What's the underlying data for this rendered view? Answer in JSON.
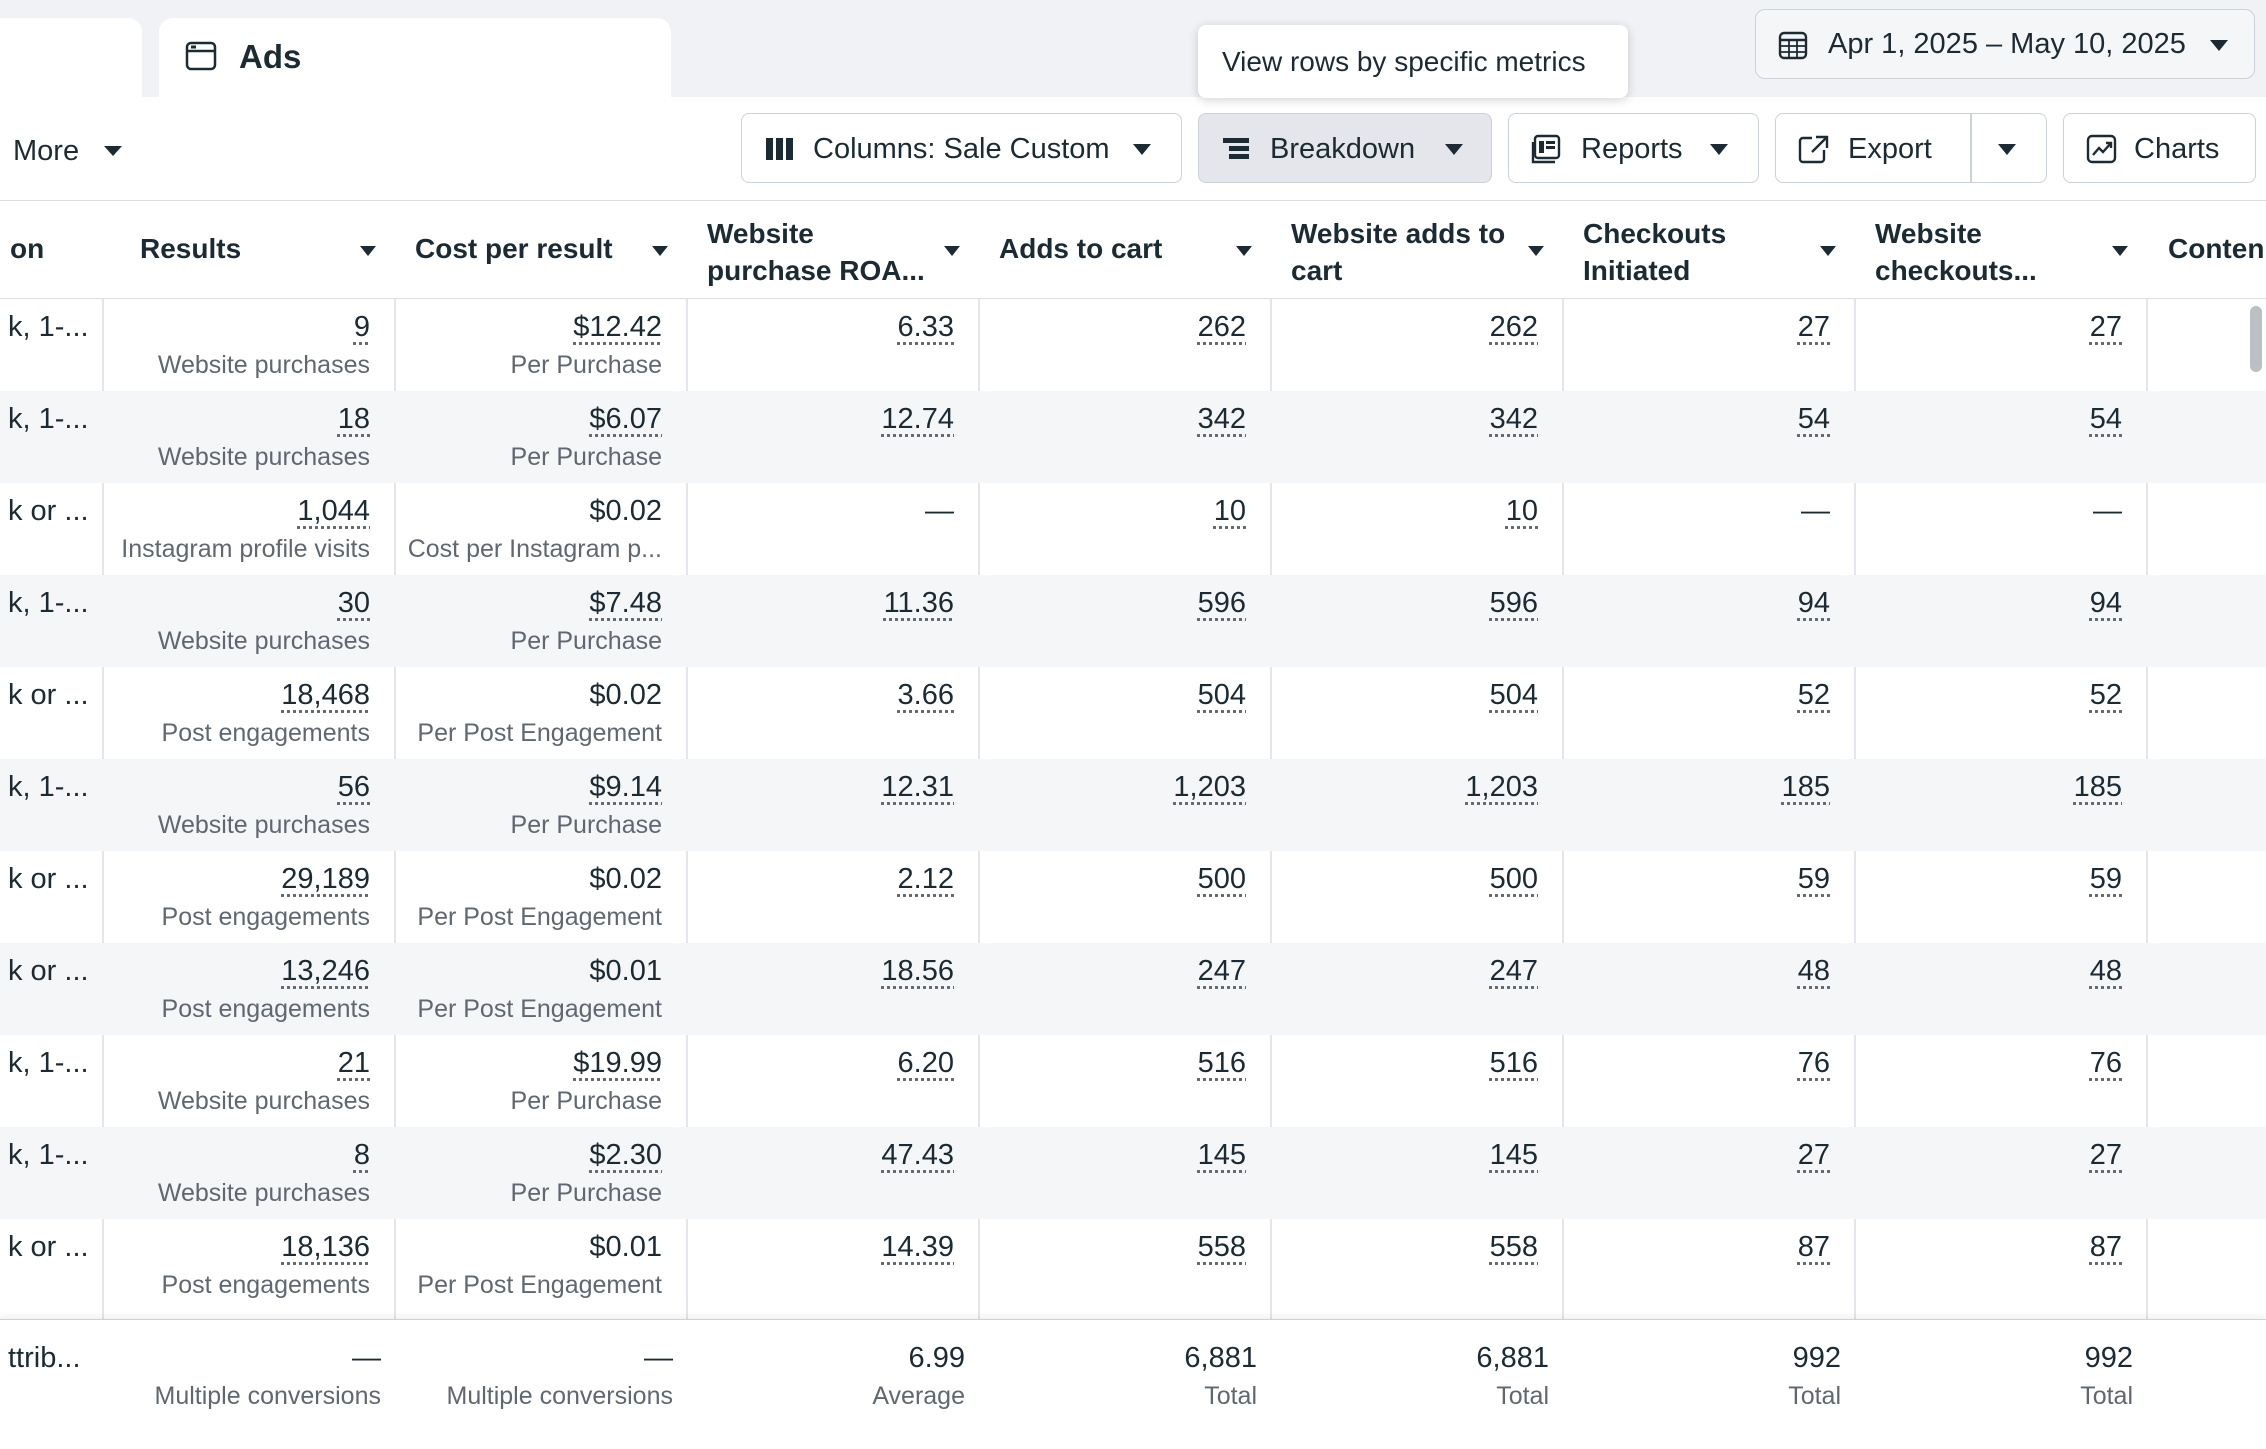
{
  "tabs": {
    "ads_label": "Ads"
  },
  "date_range": {
    "label": "Apr 1, 2025 – May 10, 2025"
  },
  "tooltip": {
    "text": "View rows by specific metrics"
  },
  "toolbar": {
    "more_label": "More",
    "columns_label": "Columns: Sale Custom",
    "breakdown_label": "Breakdown",
    "reports_label": "Reports",
    "export_label": "Export",
    "charts_label": "Charts"
  },
  "columns": [
    {
      "key": "name",
      "label": "on"
    },
    {
      "key": "results",
      "label": "Results"
    },
    {
      "key": "cost",
      "label": "Cost per result"
    },
    {
      "key": "roas",
      "label": "Website purchase ROA..."
    },
    {
      "key": "atc",
      "label": "Adds to cart"
    },
    {
      "key": "watc",
      "label": "Website adds to cart"
    },
    {
      "key": "ci",
      "label": "Checkouts Initiated"
    },
    {
      "key": "wc",
      "label": "Website checkouts..."
    },
    {
      "key": "content",
      "label": "Conten"
    }
  ],
  "rows": [
    {
      "name": "k, 1-...",
      "results": "9",
      "results_sub": "Website purchases",
      "cost": "$12.42",
      "cost_sub": "Per Purchase",
      "roas": "6.33",
      "atc": "262",
      "watc": "262",
      "ci": "27",
      "wc": "27"
    },
    {
      "name": "k, 1-...",
      "results": "18",
      "results_sub": "Website purchases",
      "cost": "$6.07",
      "cost_sub": "Per Purchase",
      "roas": "12.74",
      "atc": "342",
      "watc": "342",
      "ci": "54",
      "wc": "54"
    },
    {
      "name": "k or ...",
      "results": "1,044",
      "results_sub": "Instagram profile visits",
      "cost": "$0.02",
      "cost_sub": "Cost per Instagram p...",
      "roas": "—",
      "atc": "10",
      "watc": "10",
      "ci": "—",
      "wc": "—"
    },
    {
      "name": "k, 1-...",
      "results": "30",
      "results_sub": "Website purchases",
      "cost": "$7.48",
      "cost_sub": "Per Purchase",
      "roas": "11.36",
      "atc": "596",
      "watc": "596",
      "ci": "94",
      "wc": "94"
    },
    {
      "name": "k or ...",
      "results": "18,468",
      "results_sub": "Post engagements",
      "cost": "$0.02",
      "cost_sub": "Per Post Engagement",
      "roas": "3.66",
      "atc": "504",
      "watc": "504",
      "ci": "52",
      "wc": "52"
    },
    {
      "name": "k, 1-...",
      "results": "56",
      "results_sub": "Website purchases",
      "cost": "$9.14",
      "cost_sub": "Per Purchase",
      "roas": "12.31",
      "atc": "1,203",
      "watc": "1,203",
      "ci": "185",
      "wc": "185"
    },
    {
      "name": "k or ...",
      "results": "29,189",
      "results_sub": "Post engagements",
      "cost": "$0.02",
      "cost_sub": "Per Post Engagement",
      "roas": "2.12",
      "atc": "500",
      "watc": "500",
      "ci": "59",
      "wc": "59"
    },
    {
      "name": "k or ...",
      "results": "13,246",
      "results_sub": "Post engagements",
      "cost": "$0.01",
      "cost_sub": "Per Post Engagement",
      "roas": "18.56",
      "atc": "247",
      "watc": "247",
      "ci": "48",
      "wc": "48"
    },
    {
      "name": "k, 1-...",
      "results": "21",
      "results_sub": "Website purchases",
      "cost": "$19.99",
      "cost_sub": "Per Purchase",
      "roas": "6.20",
      "atc": "516",
      "watc": "516",
      "ci": "76",
      "wc": "76"
    },
    {
      "name": "k, 1-...",
      "results": "8",
      "results_sub": "Website purchases",
      "cost": "$2.30",
      "cost_sub": "Per Purchase",
      "roas": "47.43",
      "atc": "145",
      "watc": "145",
      "ci": "27",
      "wc": "27"
    },
    {
      "name": "k or ...",
      "results": "18,136",
      "results_sub": "Post engagements",
      "cost": "$0.01",
      "cost_sub": "Per Post Engagement",
      "roas": "14.39",
      "atc": "558",
      "watc": "558",
      "ci": "87",
      "wc": "87"
    }
  ],
  "totals": {
    "name": "ttrib...",
    "results": "—",
    "results_sub": "Multiple conversions",
    "cost": "—",
    "cost_sub": "Multiple conversions",
    "roas": "6.99",
    "roas_sub": "Average",
    "atc": "6,881",
    "atc_sub": "Total",
    "watc": "6,881",
    "watc_sub": "Total",
    "ci": "992",
    "ci_sub": "Total",
    "wc": "992",
    "wc_sub": "Total"
  }
}
